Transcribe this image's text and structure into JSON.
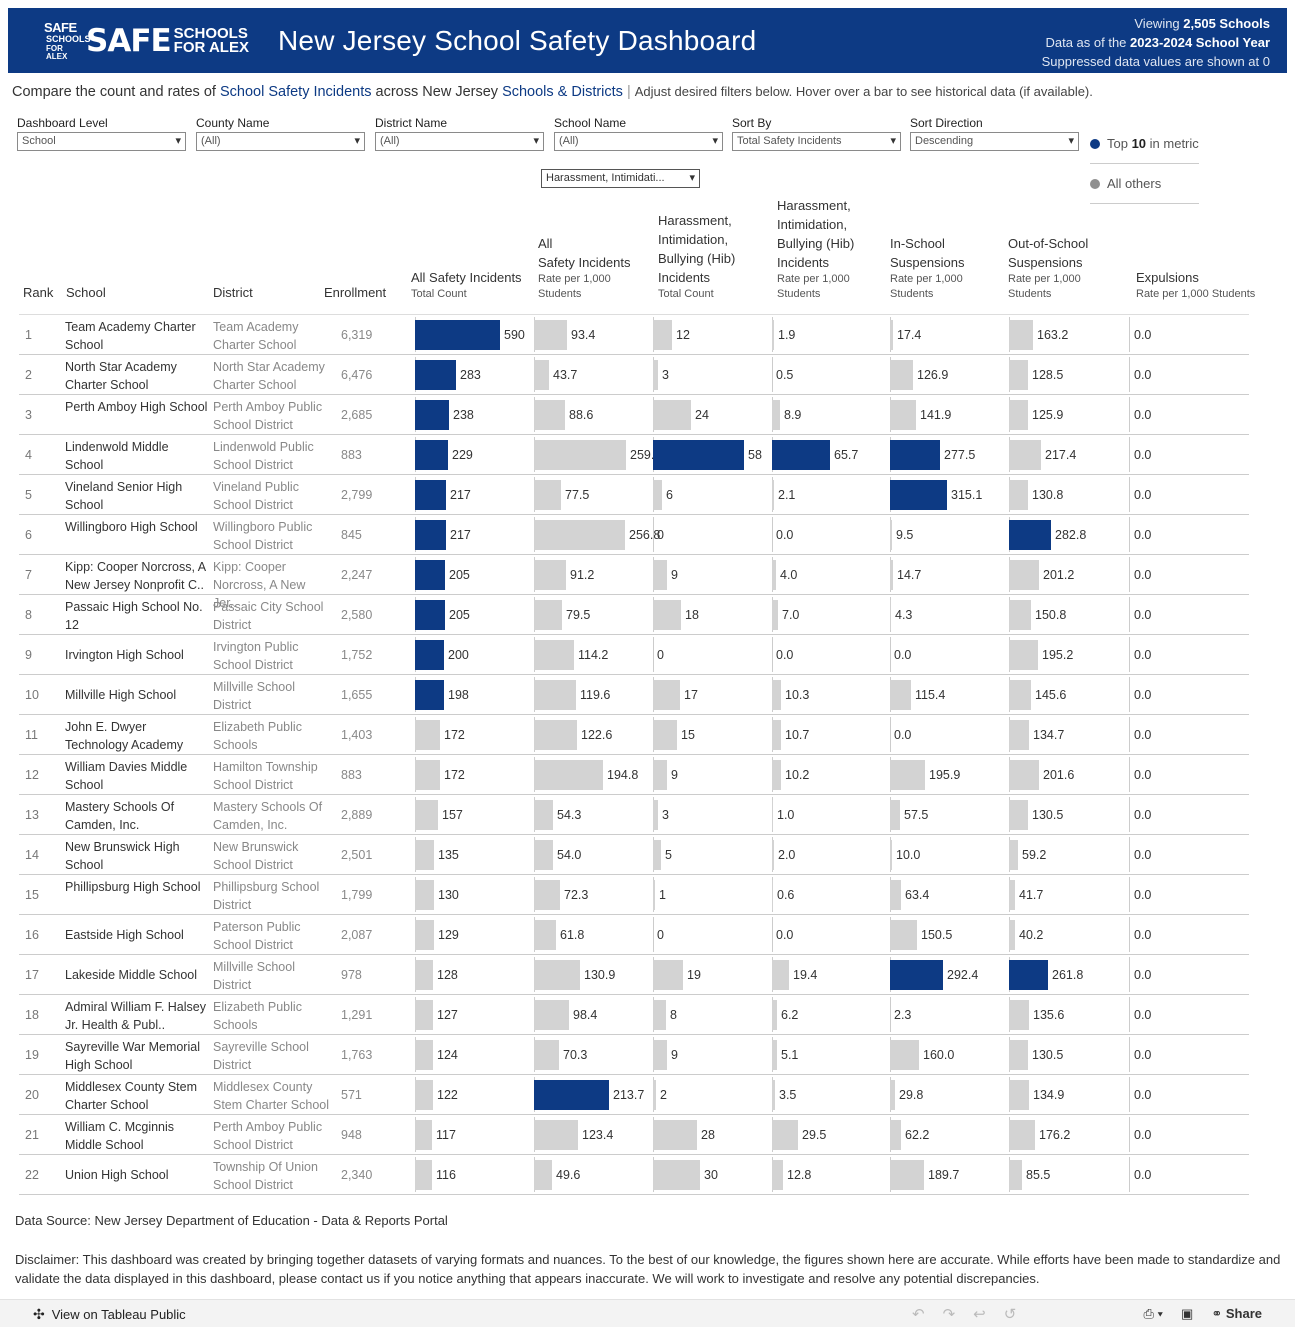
{
  "header": {
    "logo_text": "SAFE",
    "logo_sub1": "SCHOOLS",
    "logo_sub2": "FOR ALEX",
    "title": "New Jersey School Safety Dashboard",
    "viewing_prefix": "Viewing ",
    "viewing_count": "2,505 Schools",
    "data_prefix": "Data as of the ",
    "data_year": "2023-2024 School Year",
    "suppressed": "Suppressed data values are shown at 0"
  },
  "intro": {
    "p1": "Compare the count and rates of ",
    "link1": "School Safety Incidents",
    "p2": " across New Jersey ",
    "link2": "Schools & Districts",
    "sep": " | ",
    "p3": "Adjust desired filters below. Hover over a bar to see historical data (if available)."
  },
  "filters": [
    {
      "label": "Dashboard Level",
      "value": "School"
    },
    {
      "label": "County Name",
      "value": "(All)"
    },
    {
      "label": "District Name",
      "value": "(All)"
    },
    {
      "label": "School Name",
      "value": "(All)"
    },
    {
      "label": "Sort By",
      "value": "Total Safety Incidents"
    },
    {
      "label": "Sort Direction",
      "value": "Descending"
    }
  ],
  "metric_dropdown": "Harassment, Intimidati...",
  "legend": {
    "top_prefix": "Top ",
    "top_n": "10",
    "top_suffix": " in metric",
    "others": "All others"
  },
  "colors": {
    "highlight": "#0d3a84",
    "other": "#d3d3d3"
  },
  "columns": {
    "rank": "Rank",
    "school": "School",
    "district": "District",
    "enrollment": "Enrollment",
    "all_total_l1": "All Safety Incidents",
    "all_total_sub": "Total Count",
    "all_rate_l1": "All",
    "all_rate_l2": "Safety Incidents",
    "all_rate_sub1": "Rate per 1,000",
    "all_rate_sub2": "Students",
    "hib_total_l1": "Harassment,",
    "hib_total_l2": "Intimidation,",
    "hib_total_l3": "Bullying (Hib)",
    "hib_total_l4": "Incidents",
    "hib_total_sub": "Total Count",
    "hib_rate_l1": "Harassment,",
    "hib_rate_l2": "Intimidation,",
    "hib_rate_l3": "Bullying (Hib)",
    "hib_rate_l4": "Incidents",
    "hib_rate_sub1": "Rate per 1,000",
    "hib_rate_sub2": "Students",
    "iss_l1": "In-School",
    "iss_l2": "Suspensions",
    "iss_sub1": "Rate per 1,000",
    "iss_sub2": "Students",
    "oss_l1": "Out-of-School",
    "oss_l2": "Suspensions",
    "oss_sub1": "Rate per 1,000",
    "oss_sub2": "Students",
    "exp_l1": "Expulsions",
    "exp_sub": "Rate per 1,000 Students"
  },
  "rows": [
    {
      "rank": "1",
      "school": "Team Academy Charter School",
      "district": "Team Academy Charter School",
      "enrollment": "6,319",
      "all_total": 590,
      "all_rate": 93.4,
      "hib_total": 12,
      "hib_rate": 1.9,
      "iss": 17.4,
      "oss": 163.2,
      "exp": 0.0,
      "hl": {
        "all_total": 1,
        "all_rate": 0,
        "hib_total": 0,
        "hib_rate": 0,
        "iss": 0,
        "oss": 0
      }
    },
    {
      "rank": "2",
      "school": "North Star Academy Charter School",
      "district": "North Star Academy Charter School",
      "enrollment": "6,476",
      "all_total": 283,
      "all_rate": 43.7,
      "hib_total": 3,
      "hib_rate": 0.5,
      "iss": 126.9,
      "oss": 128.5,
      "exp": 0.0,
      "hl": {
        "all_total": 1,
        "all_rate": 0,
        "hib_total": 0,
        "hib_rate": 0,
        "iss": 0,
        "oss": 0
      }
    },
    {
      "rank": "3",
      "school": "Perth Amboy High School",
      "district": "Perth Amboy Public School District",
      "enrollment": "2,685",
      "all_total": 238,
      "all_rate": 88.6,
      "hib_total": 24,
      "hib_rate": 8.9,
      "iss": 141.9,
      "oss": 125.9,
      "exp": 0.0,
      "hl": {
        "all_total": 1,
        "all_rate": 0,
        "hib_total": 0,
        "hib_rate": 0,
        "iss": 0,
        "oss": 0
      }
    },
    {
      "rank": "4",
      "school": "Lindenwold Middle School",
      "district": "Lindenwold Public School District",
      "enrollment": "883",
      "all_total": 229,
      "all_rate": 259.3,
      "hib_total": 58,
      "hib_rate": 65.7,
      "iss": 277.5,
      "oss": 217.4,
      "exp": 0.0,
      "hl": {
        "all_total": 1,
        "all_rate": 0,
        "hib_total": 1,
        "hib_rate": 1,
        "iss": 1,
        "oss": 0
      }
    },
    {
      "rank": "5",
      "school": "Vineland Senior High School",
      "district": "Vineland Public School District",
      "enrollment": "2,799",
      "all_total": 217,
      "all_rate": 77.5,
      "hib_total": 6,
      "hib_rate": 2.1,
      "iss": 315.1,
      "oss": 130.8,
      "exp": 0.0,
      "hl": {
        "all_total": 1,
        "all_rate": 0,
        "hib_total": 0,
        "hib_rate": 0,
        "iss": 1,
        "oss": 0
      }
    },
    {
      "rank": "6",
      "school": "Willingboro High School",
      "district": "Willingboro Public School District",
      "enrollment": "845",
      "all_total": 217,
      "all_rate": 256.8,
      "hib_total": 0,
      "hib_rate": 0.0,
      "iss": 9.5,
      "oss": 282.8,
      "exp": 0.0,
      "hl": {
        "all_total": 1,
        "all_rate": 0,
        "hib_total": 0,
        "hib_rate": 0,
        "iss": 0,
        "oss": 1
      }
    },
    {
      "rank": "7",
      "school": "Kipp: Cooper Norcross, A New Jersey Nonprofit C..",
      "district": "Kipp: Cooper Norcross, A New Jer..",
      "enrollment": "2,247",
      "all_total": 205,
      "all_rate": 91.2,
      "hib_total": 9,
      "hib_rate": 4.0,
      "iss": 14.7,
      "oss": 201.2,
      "exp": 0.0,
      "hl": {
        "all_total": 1,
        "all_rate": 0,
        "hib_total": 0,
        "hib_rate": 0,
        "iss": 0,
        "oss": 0
      }
    },
    {
      "rank": "8",
      "school": "Passaic High School No. 12",
      "district": "Passaic City School District",
      "enrollment": "2,580",
      "all_total": 205,
      "all_rate": 79.5,
      "hib_total": 18,
      "hib_rate": 7.0,
      "iss": 4.3,
      "oss": 150.8,
      "exp": 0.0,
      "hl": {
        "all_total": 1,
        "all_rate": 0,
        "hib_total": 0,
        "hib_rate": 0,
        "iss": 0,
        "oss": 0
      }
    },
    {
      "rank": "9",
      "school": "Irvington High School",
      "district": "Irvington Public School District",
      "enrollment": "1,752",
      "all_total": 200,
      "all_rate": 114.2,
      "hib_total": 0,
      "hib_rate": 0.0,
      "iss": 0.0,
      "oss": 195.2,
      "exp": 0.0,
      "hl": {
        "all_total": 1,
        "all_rate": 0,
        "hib_total": 0,
        "hib_rate": 0,
        "iss": 0,
        "oss": 0
      }
    },
    {
      "rank": "10",
      "school": "Millville High School",
      "district": "Millville School District",
      "enrollment": "1,655",
      "all_total": 198,
      "all_rate": 119.6,
      "hib_total": 17,
      "hib_rate": 10.3,
      "iss": 115.4,
      "oss": 145.6,
      "exp": 0.0,
      "hl": {
        "all_total": 1,
        "all_rate": 0,
        "hib_total": 0,
        "hib_rate": 0,
        "iss": 0,
        "oss": 0
      }
    },
    {
      "rank": "11",
      "school": "John E. Dwyer Technology Academy",
      "district": "Elizabeth Public Schools",
      "enrollment": "1,403",
      "all_total": 172,
      "all_rate": 122.6,
      "hib_total": 15,
      "hib_rate": 10.7,
      "iss": 0.0,
      "oss": 134.7,
      "exp": 0.0,
      "hl": {
        "all_total": 0,
        "all_rate": 0,
        "hib_total": 0,
        "hib_rate": 0,
        "iss": 0,
        "oss": 0
      }
    },
    {
      "rank": "12",
      "school": "William Davies Middle School",
      "district": "Hamilton Township School District",
      "enrollment": "883",
      "all_total": 172,
      "all_rate": 194.8,
      "hib_total": 9,
      "hib_rate": 10.2,
      "iss": 195.9,
      "oss": 201.6,
      "exp": 0.0,
      "hl": {
        "all_total": 0,
        "all_rate": 0,
        "hib_total": 0,
        "hib_rate": 0,
        "iss": 0,
        "oss": 0
      }
    },
    {
      "rank": "13",
      "school": "Mastery Schools Of Camden, Inc.",
      "district": "Mastery Schools Of Camden, Inc.",
      "enrollment": "2,889",
      "all_total": 157,
      "all_rate": 54.3,
      "hib_total": 3,
      "hib_rate": 1.0,
      "iss": 57.5,
      "oss": 130.5,
      "exp": 0.0,
      "hl": {
        "all_total": 0,
        "all_rate": 0,
        "hib_total": 0,
        "hib_rate": 0,
        "iss": 0,
        "oss": 0
      }
    },
    {
      "rank": "14",
      "school": "New Brunswick High School",
      "district": "New Brunswick School District",
      "enrollment": "2,501",
      "all_total": 135,
      "all_rate": 54.0,
      "hib_total": 5,
      "hib_rate": 2.0,
      "iss": 10.0,
      "oss": 59.2,
      "exp": 0.0,
      "hl": {
        "all_total": 0,
        "all_rate": 0,
        "hib_total": 0,
        "hib_rate": 0,
        "iss": 0,
        "oss": 0
      }
    },
    {
      "rank": "15",
      "school": "Phillipsburg High School",
      "district": "Phillipsburg School District",
      "enrollment": "1,799",
      "all_total": 130,
      "all_rate": 72.3,
      "hib_total": 1,
      "hib_rate": 0.6,
      "iss": 63.4,
      "oss": 41.7,
      "exp": 0.0,
      "hl": {
        "all_total": 0,
        "all_rate": 0,
        "hib_total": 0,
        "hib_rate": 0,
        "iss": 0,
        "oss": 0
      }
    },
    {
      "rank": "16",
      "school": "Eastside High School",
      "district": "Paterson Public School District",
      "enrollment": "2,087",
      "all_total": 129,
      "all_rate": 61.8,
      "hib_total": 0,
      "hib_rate": 0.0,
      "iss": 150.5,
      "oss": 40.2,
      "exp": 0.0,
      "hl": {
        "all_total": 0,
        "all_rate": 0,
        "hib_total": 0,
        "hib_rate": 0,
        "iss": 0,
        "oss": 0
      }
    },
    {
      "rank": "17",
      "school": "Lakeside Middle School",
      "district": "Millville School District",
      "enrollment": "978",
      "all_total": 128,
      "all_rate": 130.9,
      "hib_total": 19,
      "hib_rate": 19.4,
      "iss": 292.4,
      "oss": 261.8,
      "exp": 0.0,
      "hl": {
        "all_total": 0,
        "all_rate": 0,
        "hib_total": 0,
        "hib_rate": 0,
        "iss": 1,
        "oss": 1
      }
    },
    {
      "rank": "18",
      "school": "Admiral William F. Halsey Jr. Health & Publ..",
      "district": "Elizabeth Public Schools",
      "enrollment": "1,291",
      "all_total": 127,
      "all_rate": 98.4,
      "hib_total": 8,
      "hib_rate": 6.2,
      "iss": 2.3,
      "oss": 135.6,
      "exp": 0.0,
      "hl": {
        "all_total": 0,
        "all_rate": 0,
        "hib_total": 0,
        "hib_rate": 0,
        "iss": 0,
        "oss": 0
      }
    },
    {
      "rank": "19",
      "school": "Sayreville War Memorial High School",
      "district": "Sayreville School District",
      "enrollment": "1,763",
      "all_total": 124,
      "all_rate": 70.3,
      "hib_total": 9,
      "hib_rate": 5.1,
      "iss": 160.0,
      "oss": 130.5,
      "exp": 0.0,
      "hl": {
        "all_total": 0,
        "all_rate": 0,
        "hib_total": 0,
        "hib_rate": 0,
        "iss": 0,
        "oss": 0
      }
    },
    {
      "rank": "20",
      "school": "Middlesex County Stem Charter School",
      "district": "Middlesex County Stem Charter School",
      "enrollment": "571",
      "all_total": 122,
      "all_rate": 213.7,
      "hib_total": 2,
      "hib_rate": 3.5,
      "iss": 29.8,
      "oss": 134.9,
      "exp": 0.0,
      "hl": {
        "all_total": 0,
        "all_rate": 1,
        "hib_total": 0,
        "hib_rate": 0,
        "iss": 0,
        "oss": 0
      }
    },
    {
      "rank": "21",
      "school": "William C. Mcginnis Middle School",
      "district": "Perth Amboy Public School District",
      "enrollment": "948",
      "all_total": 117,
      "all_rate": 123.4,
      "hib_total": 28,
      "hib_rate": 29.5,
      "iss": 62.2,
      "oss": 176.2,
      "exp": 0.0,
      "hl": {
        "all_total": 0,
        "all_rate": 0,
        "hib_total": 0,
        "hib_rate": 0,
        "iss": 0,
        "oss": 0
      }
    },
    {
      "rank": "22",
      "school": "Union High School",
      "district": "Township Of Union School District",
      "enrollment": "2,340",
      "all_total": 116,
      "all_rate": 49.6,
      "hib_total": 30,
      "hib_rate": 12.8,
      "iss": 189.7,
      "oss": 85.5,
      "exp": 0.0,
      "hl": {
        "all_total": 0,
        "all_rate": 0,
        "hib_total": 0,
        "hib_rate": 0,
        "iss": 0,
        "oss": 0
      }
    }
  ],
  "footer": {
    "source": "Data Source: New Jersey Department of Education - Data & Reports Portal",
    "disclaimer": "Disclaimer: This dashboard was created by bringing together datasets of varying formats and nuances. To the best of our knowledge, the figures shown here are accurate. While efforts have been made to standardize and validate the data displayed in this dashboard, please contact us if you notice anything that appears inaccurate. We will work to investigate and resolve any potential discrepancies."
  },
  "toolbar": {
    "view_label": "View on Tableau Public",
    "share_label": "Share"
  }
}
